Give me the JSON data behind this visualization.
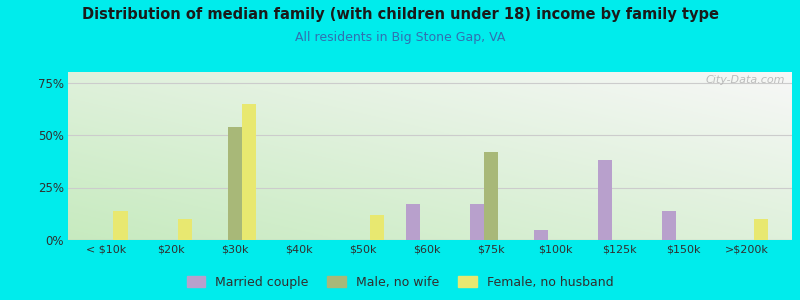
{
  "title": "Distribution of median family (with children under 18) income by family type",
  "subtitle": "All residents in Big Stone Gap, VA",
  "categories": [
    "< $10k",
    "$20k",
    "$30k",
    "$40k",
    "$50k",
    "$60k",
    "$75k",
    "$100k",
    "$125k",
    "$150k",
    ">$200k"
  ],
  "married_couple": [
    0,
    0,
    0,
    0,
    0,
    17,
    17,
    5,
    38,
    14,
    0
  ],
  "male_no_wife": [
    0,
    0,
    54,
    0,
    0,
    0,
    42,
    0,
    0,
    0,
    0
  ],
  "female_no_husband": [
    14,
    10,
    65,
    0,
    12,
    0,
    0,
    0,
    0,
    0,
    10
  ],
  "married_color": "#b8a0cc",
  "male_color": "#a8b878",
  "female_color": "#e8e870",
  "title_color": "#1a1a1a",
  "subtitle_color": "#3070b0",
  "grid_color": "#cccccc",
  "ylim": [
    0,
    80
  ],
  "yticks": [
    0,
    25,
    50,
    75
  ],
  "watermark": "City-Data.com",
  "legend_labels": [
    "Married couple",
    "Male, no wife",
    "Female, no husband"
  ],
  "outer_bg": "#00ecec",
  "bar_width": 0.22
}
